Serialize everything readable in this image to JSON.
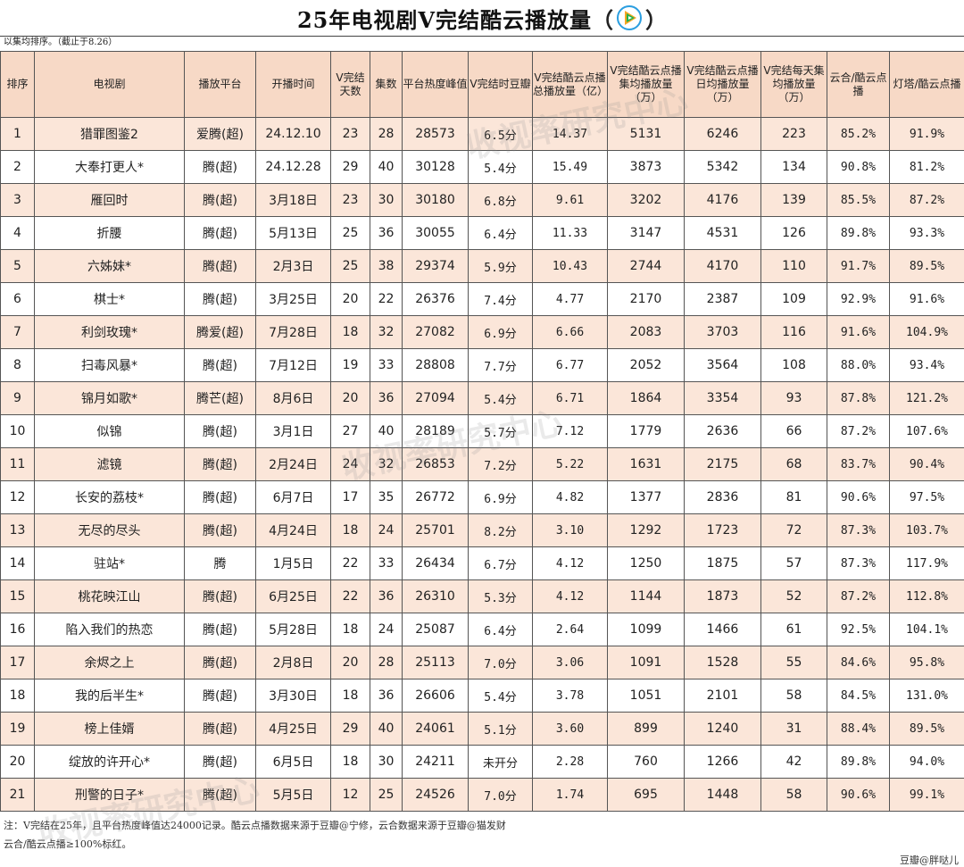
{
  "title": {
    "text": "25年电视剧V完结酷云播放量",
    "open": "（",
    "close": "）",
    "logo_icon": "tencent-video-icon"
  },
  "sort_note": "以集均排序。（截止于8.26）",
  "columns": [
    "排序",
    "电视剧",
    "播放平台",
    "开播时间",
    "V完结天数",
    "集数",
    "平台热度峰值",
    "V完结时豆瓣",
    "V完结酷云点播总播放量（亿）",
    "V完结酷云点播集均播放量（万）",
    "V完结酷云点播日均播放量（万）",
    "V完结每天集均播放量（万）",
    "云合/酷云点播",
    "灯塔/酷云点播"
  ],
  "rows": [
    [
      "1",
      "猎罪图鉴2",
      "爱腾(超)",
      "24.12.10",
      "23",
      "28",
      "28573",
      "6.5分",
      "14.37",
      "5131",
      "6246",
      "223",
      "85.2%",
      "91.9%"
    ],
    [
      "2",
      "大奉打更人*",
      "腾(超)",
      "24.12.28",
      "29",
      "40",
      "30128",
      "5.4分",
      "15.49",
      "3873",
      "5342",
      "134",
      "90.8%",
      "81.2%"
    ],
    [
      "3",
      "雁回时",
      "腾(超)",
      "3月18日",
      "23",
      "30",
      "30180",
      "6.8分",
      "9.61",
      "3202",
      "4176",
      "139",
      "85.5%",
      "87.2%"
    ],
    [
      "4",
      "折腰",
      "腾(超)",
      "5月13日",
      "25",
      "36",
      "30055",
      "6.4分",
      "11.33",
      "3147",
      "4531",
      "126",
      "89.8%",
      "93.3%"
    ],
    [
      "5",
      "六姊妹*",
      "腾(超)",
      "2月3日",
      "25",
      "38",
      "29374",
      "5.9分",
      "10.43",
      "2744",
      "4170",
      "110",
      "91.7%",
      "89.5%"
    ],
    [
      "6",
      "棋士*",
      "腾(超)",
      "3月25日",
      "20",
      "22",
      "26376",
      "7.4分",
      "4.77",
      "2170",
      "2387",
      "109",
      "92.9%",
      "91.6%"
    ],
    [
      "7",
      "利剑玫瑰*",
      "腾爱(超)",
      "7月28日",
      "18",
      "32",
      "27082",
      "6.9分",
      "6.66",
      "2083",
      "3703",
      "116",
      "91.6%",
      "104.9%"
    ],
    [
      "8",
      "扫毒风暴*",
      "腾(超)",
      "7月12日",
      "19",
      "33",
      "28808",
      "7.7分",
      "6.77",
      "2052",
      "3564",
      "108",
      "88.0%",
      "93.4%"
    ],
    [
      "9",
      "锦月如歌*",
      "腾芒(超)",
      "8月6日",
      "20",
      "36",
      "27094",
      "5.4分",
      "6.71",
      "1864",
      "3354",
      "93",
      "87.8%",
      "121.2%"
    ],
    [
      "10",
      "似锦",
      "腾(超)",
      "3月1日",
      "27",
      "40",
      "28189",
      "5.7分",
      "7.12",
      "1779",
      "2636",
      "66",
      "87.2%",
      "107.6%"
    ],
    [
      "11",
      "滤镜",
      "腾(超)",
      "2月24日",
      "24",
      "32",
      "26853",
      "7.2分",
      "5.22",
      "1631",
      "2175",
      "68",
      "83.7%",
      "90.4%"
    ],
    [
      "12",
      "长安的荔枝*",
      "腾(超)",
      "6月7日",
      "17",
      "35",
      "26772",
      "6.9分",
      "4.82",
      "1377",
      "2836",
      "81",
      "90.6%",
      "97.5%"
    ],
    [
      "13",
      "无尽的尽头",
      "腾(超)",
      "4月24日",
      "18",
      "24",
      "25701",
      "8.2分",
      "3.10",
      "1292",
      "1723",
      "72",
      "87.3%",
      "103.7%"
    ],
    [
      "14",
      "驻站*",
      "腾",
      "1月5日",
      "22",
      "33",
      "26434",
      "6.7分",
      "4.12",
      "1250",
      "1875",
      "57",
      "87.3%",
      "117.9%"
    ],
    [
      "15",
      "桃花映江山",
      "腾(超)",
      "6月25日",
      "22",
      "36",
      "26310",
      "5.3分",
      "4.12",
      "1144",
      "1873",
      "52",
      "87.2%",
      "112.8%"
    ],
    [
      "16",
      "陷入我们的热恋",
      "腾(超)",
      "5月28日",
      "18",
      "24",
      "25087",
      "6.4分",
      "2.64",
      "1099",
      "1466",
      "61",
      "92.5%",
      "104.1%"
    ],
    [
      "17",
      "余烬之上",
      "腾(超)",
      "2月8日",
      "20",
      "28",
      "25113",
      "7.0分",
      "3.06",
      "1091",
      "1528",
      "55",
      "84.6%",
      "95.8%"
    ],
    [
      "18",
      "我的后半生*",
      "腾(超)",
      "3月30日",
      "18",
      "36",
      "26606",
      "5.4分",
      "3.78",
      "1051",
      "2101",
      "58",
      "84.5%",
      "131.0%"
    ],
    [
      "19",
      "榜上佳婿",
      "腾(超)",
      "4月25日",
      "29",
      "40",
      "24061",
      "5.1分",
      "3.60",
      "899",
      "1240",
      "31",
      "88.4%",
      "89.5%"
    ],
    [
      "20",
      "绽放的许开心*",
      "腾(超)",
      "6月5日",
      "18",
      "30",
      "24211",
      "未开分",
      "2.28",
      "760",
      "1266",
      "42",
      "89.8%",
      "94.0%"
    ],
    [
      "21",
      "刑警的日子*",
      "腾(超)",
      "5月5日",
      "12",
      "25",
      "24526",
      "7.0分",
      "1.74",
      "695",
      "1448",
      "58",
      "90.6%",
      "99.1%"
    ]
  ],
  "footer": {
    "note_line1": "注：V完结在25年，且平台热度峰值达24000记录。酷云点播数据来源于豆瓣@宁修，云合数据来源于豆瓣@猫发财",
    "note_line2": "云合/酷云点播≥100%标红。",
    "credit": "豆瓣@胖哒儿"
  },
  "watermark_text": "收视率研究中心"
}
